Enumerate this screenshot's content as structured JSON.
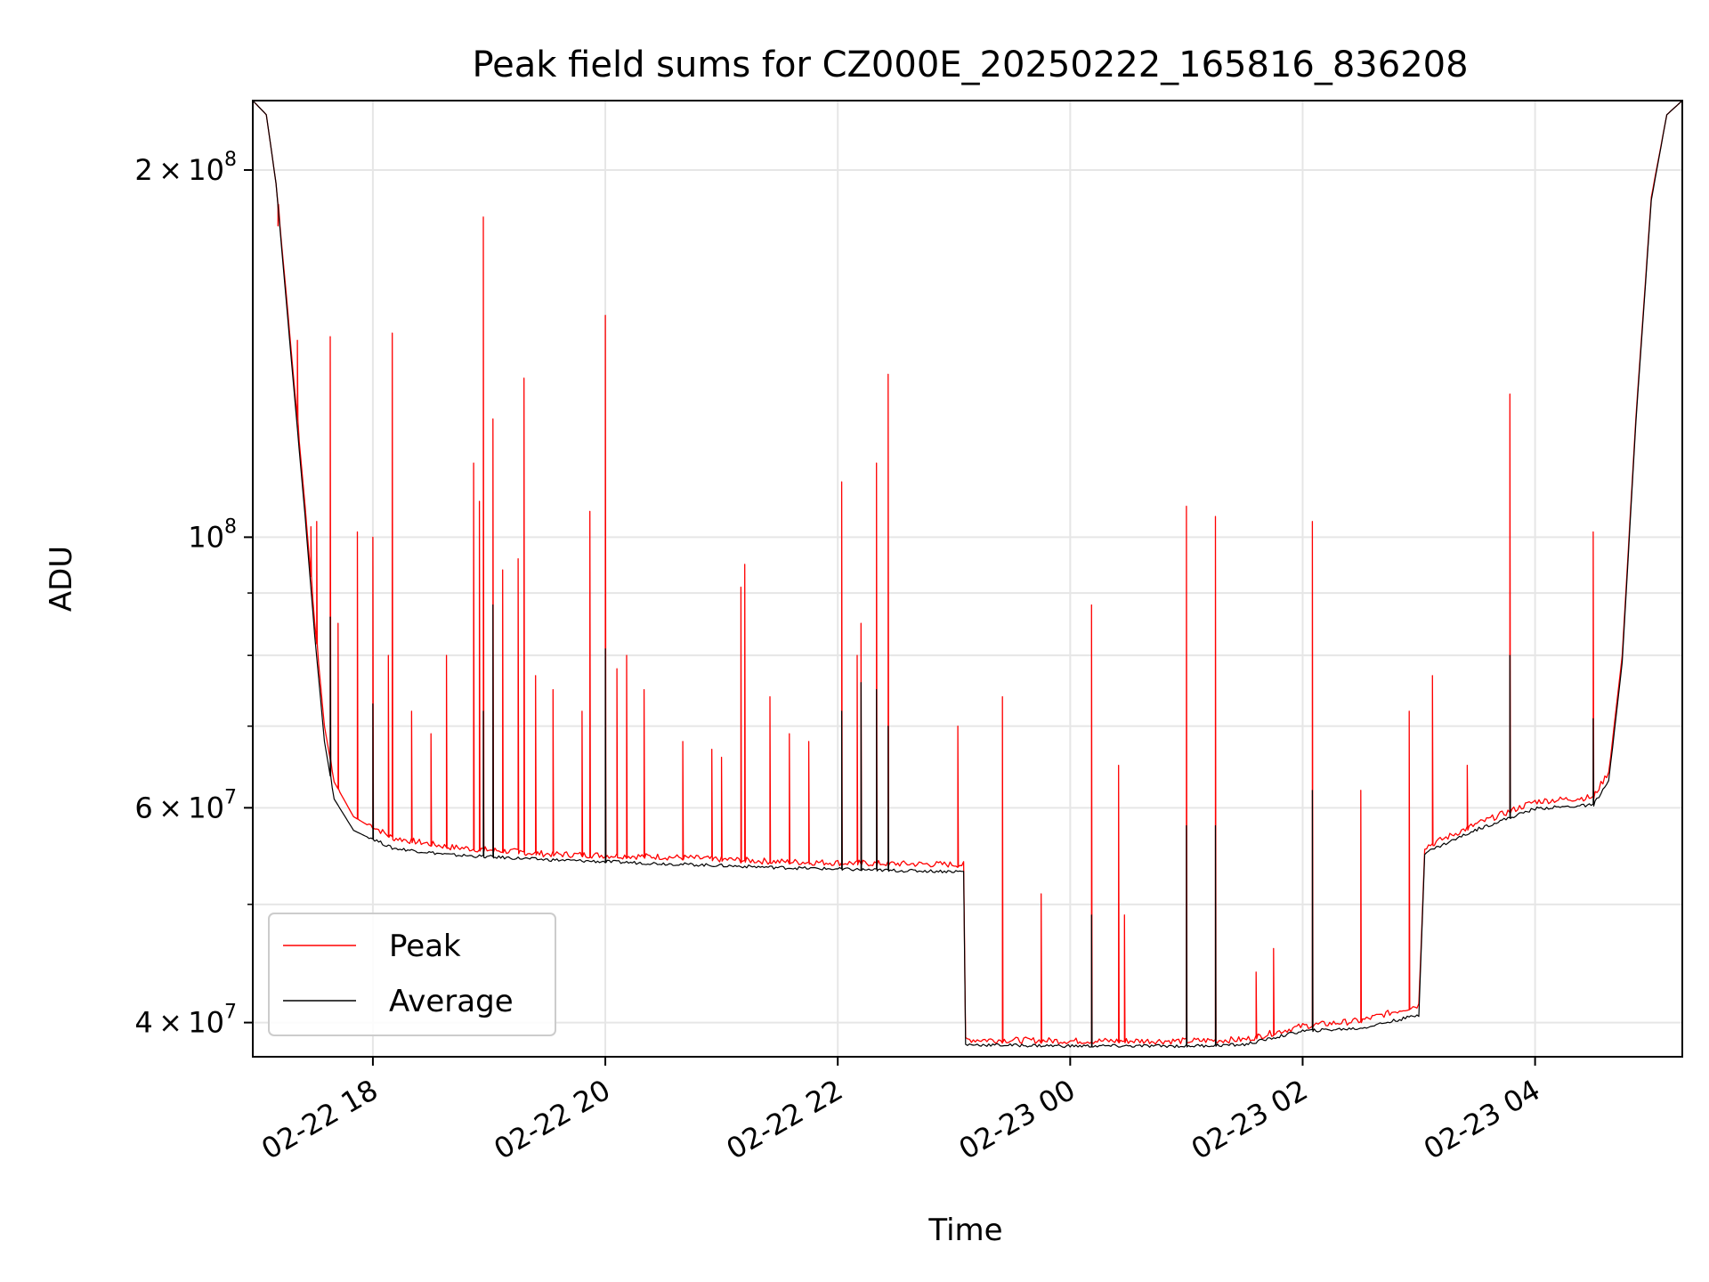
{
  "chart_data": {
    "type": "line",
    "title": "Peak field sums for CZ000E_20250222_165816_836208",
    "xlabel": "Time",
    "ylabel": "ADU",
    "y_scale": "log",
    "grid": true,
    "legend_position": "lower-left",
    "xlim": [
      "2025-02-22 16:58",
      "2025-02-23 05:16"
    ],
    "ylim": [
      37500000,
      228000000
    ],
    "x_ticks": [
      {
        "value": "2025-02-22 18:00",
        "label": "02-22 18"
      },
      {
        "value": "2025-02-22 20:00",
        "label": "02-22 20"
      },
      {
        "value": "2025-02-22 22:00",
        "label": "02-22 22"
      },
      {
        "value": "2025-02-23 00:00",
        "label": "02-23 00"
      },
      {
        "value": "2025-02-23 02:00",
        "label": "02-23 02"
      },
      {
        "value": "2025-02-23 04:00",
        "label": "02-23 04"
      }
    ],
    "y_ticks": [
      {
        "value": 40000000,
        "base": "4",
        "exp": "7"
      },
      {
        "value": 60000000,
        "base": "6",
        "exp": "7"
      },
      {
        "value": 100000000,
        "base": "",
        "exp": "8"
      },
      {
        "value": 200000000,
        "base": "2",
        "exp": "8"
      }
    ],
    "y_minor_ticks": [
      50000000,
      70000000,
      80000000,
      90000000
    ],
    "series": [
      {
        "name": "Peak",
        "color": "#ff0000",
        "baseline": [
          [
            "2025-02-22 16:58",
            228000000
          ],
          [
            "2025-02-22 17:05",
            222000000
          ],
          [
            "2025-02-22 17:10",
            195000000
          ],
          [
            "2025-02-22 17:15",
            160000000
          ],
          [
            "2025-02-22 17:20",
            130000000
          ],
          [
            "2025-02-22 17:25",
            106000000
          ],
          [
            "2025-02-22 17:30",
            85000000
          ],
          [
            "2025-02-22 17:35",
            70000000
          ],
          [
            "2025-02-22 17:40",
            63000000
          ],
          [
            "2025-02-22 17:50",
            59000000
          ],
          [
            "2025-02-22 18:10",
            56500000
          ],
          [
            "2025-02-22 18:40",
            55500000
          ],
          [
            "2025-02-22 19:30",
            54800000
          ],
          [
            "2025-02-22 20:30",
            54500000
          ],
          [
            "2025-02-22 21:30",
            54000000
          ],
          [
            "2025-02-22 22:30",
            53800000
          ],
          [
            "2025-02-22 23:05",
            53700000
          ],
          [
            "2025-02-22 23:06",
            38600000
          ],
          [
            "2025-02-23 00:00",
            38500000
          ],
          [
            "2025-02-23 01:00",
            38500000
          ],
          [
            "2025-02-23 01:30",
            38600000
          ],
          [
            "2025-02-23 02:00",
            39600000
          ],
          [
            "2025-02-23 02:30",
            40000000
          ],
          [
            "2025-02-23 03:00",
            41200000
          ],
          [
            "2025-02-23 03:03",
            55500000
          ],
          [
            "2025-02-23 03:30",
            58000000
          ],
          [
            "2025-02-23 04:00",
            60500000
          ],
          [
            "2025-02-23 04:30",
            61000000
          ],
          [
            "2025-02-23 04:38",
            64000000
          ],
          [
            "2025-02-23 04:45",
            80000000
          ],
          [
            "2025-02-23 04:52",
            125000000
          ],
          [
            "2025-02-23 05:00",
            190000000
          ],
          [
            "2025-02-23 05:08",
            222000000
          ],
          [
            "2025-02-23 05:16",
            228000000
          ]
        ],
        "spikes": [
          [
            "2025-02-22 17:11",
            180000000
          ],
          [
            "2025-02-22 17:21",
            145000000
          ],
          [
            "2025-02-22 17:28",
            102000000
          ],
          [
            "2025-02-22 17:31",
            103000000
          ],
          [
            "2025-02-22 17:38",
            146000000
          ],
          [
            "2025-02-22 17:42",
            85000000
          ],
          [
            "2025-02-22 17:52",
            101000000
          ],
          [
            "2025-02-22 18:00",
            100000000
          ],
          [
            "2025-02-22 18:08",
            80000000
          ],
          [
            "2025-02-22 18:10",
            147000000
          ],
          [
            "2025-02-22 18:20",
            72000000
          ],
          [
            "2025-02-22 18:30",
            69000000
          ],
          [
            "2025-02-22 18:38",
            80000000
          ],
          [
            "2025-02-22 18:52",
            115000000
          ],
          [
            "2025-02-22 18:55",
            107000000
          ],
          [
            "2025-02-22 18:57",
            183000000
          ],
          [
            "2025-02-22 19:02",
            125000000
          ],
          [
            "2025-02-22 19:07",
            94000000
          ],
          [
            "2025-02-22 19:15",
            96000000
          ],
          [
            "2025-02-22 19:18",
            135000000
          ],
          [
            "2025-02-22 19:24",
            77000000
          ],
          [
            "2025-02-22 19:33",
            75000000
          ],
          [
            "2025-02-22 19:48",
            72000000
          ],
          [
            "2025-02-22 19:52",
            105000000
          ],
          [
            "2025-02-22 20:00",
            152000000
          ],
          [
            "2025-02-22 20:06",
            78000000
          ],
          [
            "2025-02-22 20:11",
            80000000
          ],
          [
            "2025-02-22 20:20",
            75000000
          ],
          [
            "2025-02-22 20:40",
            68000000
          ],
          [
            "2025-02-22 20:55",
            67000000
          ],
          [
            "2025-02-22 21:00",
            66000000
          ],
          [
            "2025-02-22 21:10",
            91000000
          ],
          [
            "2025-02-22 21:12",
            95000000
          ],
          [
            "2025-02-22 21:25",
            74000000
          ],
          [
            "2025-02-22 21:35",
            69000000
          ],
          [
            "2025-02-22 21:45",
            68000000
          ],
          [
            "2025-02-22 22:02",
            111000000
          ],
          [
            "2025-02-22 22:10",
            80000000
          ],
          [
            "2025-02-22 22:12",
            85000000
          ],
          [
            "2025-02-22 22:20",
            115000000
          ],
          [
            "2025-02-22 22:26",
            136000000
          ],
          [
            "2025-02-22 23:02",
            70000000
          ],
          [
            "2025-02-22 23:25",
            74000000
          ],
          [
            "2025-02-22 23:45",
            51000000
          ],
          [
            "2025-02-23 00:11",
            88000000
          ],
          [
            "2025-02-23 00:25",
            65000000
          ],
          [
            "2025-02-23 00:28",
            49000000
          ],
          [
            "2025-02-23 01:00",
            106000000
          ],
          [
            "2025-02-23 01:15",
            104000000
          ],
          [
            "2025-02-23 01:36",
            44000000
          ],
          [
            "2025-02-23 01:45",
            46000000
          ],
          [
            "2025-02-23 02:05",
            103000000
          ],
          [
            "2025-02-23 02:30",
            62000000
          ],
          [
            "2025-02-23 02:55",
            72000000
          ],
          [
            "2025-02-23 03:07",
            77000000
          ],
          [
            "2025-02-23 03:25",
            65000000
          ],
          [
            "2025-02-23 03:47",
            131000000
          ],
          [
            "2025-02-23 04:30",
            101000000
          ]
        ]
      },
      {
        "name": "Average",
        "color": "#000000",
        "baseline": [
          [
            "2025-02-22 16:58",
            228000000
          ],
          [
            "2025-02-22 17:05",
            222000000
          ],
          [
            "2025-02-22 17:10",
            195000000
          ],
          [
            "2025-02-22 17:15",
            158000000
          ],
          [
            "2025-02-22 17:20",
            128000000
          ],
          [
            "2025-02-22 17:25",
            104000000
          ],
          [
            "2025-02-22 17:30",
            83000000
          ],
          [
            "2025-02-22 17:35",
            68000000
          ],
          [
            "2025-02-22 17:40",
            61000000
          ],
          [
            "2025-02-22 17:50",
            57500000
          ],
          [
            "2025-02-22 18:10",
            55500000
          ],
          [
            "2025-02-22 18:40",
            54800000
          ],
          [
            "2025-02-22 19:30",
            54300000
          ],
          [
            "2025-02-22 20:30",
            53900000
          ],
          [
            "2025-02-22 21:30",
            53500000
          ],
          [
            "2025-02-22 22:30",
            53200000
          ],
          [
            "2025-02-22 23:05",
            53100000
          ],
          [
            "2025-02-22 23:06",
            38300000
          ],
          [
            "2025-02-23 00:00",
            38200000
          ],
          [
            "2025-02-23 01:00",
            38200000
          ],
          [
            "2025-02-23 01:30",
            38300000
          ],
          [
            "2025-02-23 02:00",
            39300000
          ],
          [
            "2025-02-23 02:30",
            39500000
          ],
          [
            "2025-02-23 03:00",
            40500000
          ],
          [
            "2025-02-23 03:03",
            55000000
          ],
          [
            "2025-02-23 03:30",
            57500000
          ],
          [
            "2025-02-23 04:00",
            59800000
          ],
          [
            "2025-02-23 04:30",
            60200000
          ],
          [
            "2025-02-23 04:38",
            63000000
          ],
          [
            "2025-02-23 04:45",
            79000000
          ],
          [
            "2025-02-23 04:52",
            124000000
          ],
          [
            "2025-02-23 05:00",
            189000000
          ],
          [
            "2025-02-23 05:08",
            222000000
          ],
          [
            "2025-02-23 05:16",
            228000000
          ]
        ],
        "spikes": [
          [
            "2025-02-22 17:38",
            86000000
          ],
          [
            "2025-02-22 18:00",
            73000000
          ],
          [
            "2025-02-22 18:57",
            72000000
          ],
          [
            "2025-02-22 19:02",
            88000000
          ],
          [
            "2025-02-22 20:00",
            81000000
          ],
          [
            "2025-02-22 22:02",
            72000000
          ],
          [
            "2025-02-22 22:12",
            76000000
          ],
          [
            "2025-02-22 22:20",
            75000000
          ],
          [
            "2025-02-22 22:26",
            70000000
          ],
          [
            "2025-02-23 00:11",
            49000000
          ],
          [
            "2025-02-23 01:00",
            58000000
          ],
          [
            "2025-02-23 01:15",
            58000000
          ],
          [
            "2025-02-23 02:05",
            62000000
          ],
          [
            "2025-02-23 03:47",
            80000000
          ],
          [
            "2025-02-23 04:30",
            71000000
          ]
        ]
      }
    ]
  }
}
